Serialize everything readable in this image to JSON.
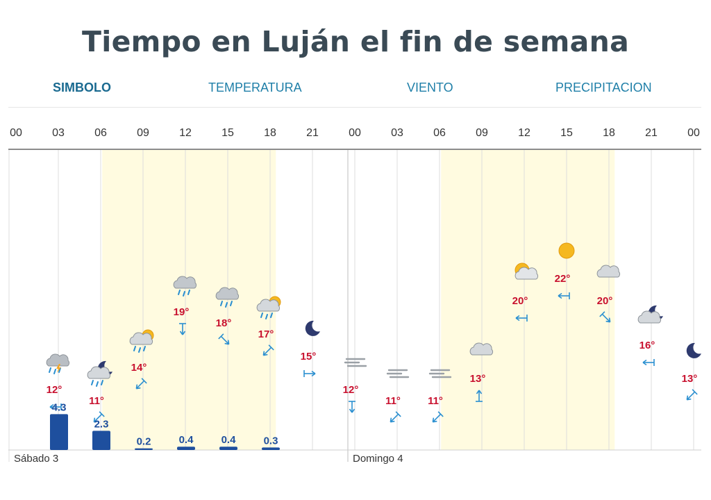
{
  "title": "Tiempo en Luján el fin de semana",
  "tabs": [
    {
      "label": "SIMBOLO",
      "active": true
    },
    {
      "label": "TEMPERATURA",
      "active": false
    },
    {
      "label": "VIENTO",
      "active": false
    },
    {
      "label": "PRECIPITACION",
      "active": false
    }
  ],
  "colors": {
    "temperature": "#c8102e",
    "precipitation": "#1e4f9e",
    "wind": "#2a8fd0",
    "daylight": "#fffbe0",
    "title": "#3a4a55"
  },
  "chart_data": {
    "type": "table",
    "days": [
      {
        "label": "Sábado 3",
        "start_index": 0
      },
      {
        "label": "Domingo 4",
        "start_index": 8
      }
    ],
    "hours": [
      "00",
      "03",
      "06",
      "09",
      "12",
      "15",
      "18",
      "21",
      "00",
      "03",
      "06",
      "09",
      "12",
      "15",
      "18",
      "21",
      "00"
    ],
    "daylight_ranges": [
      [
        2.2,
        6.3
      ],
      [
        10.2,
        14.3
      ]
    ],
    "forecast": [
      {
        "index": 1,
        "hour": "03",
        "icon": "storm-cloud-icon",
        "temp": 12,
        "temp_label": "12°",
        "wind_dir": "W",
        "precip": 4.3,
        "precip_label": "4.3"
      },
      {
        "index": 2,
        "hour": "06",
        "icon": "night-cloud-rain-icon",
        "temp": 11,
        "temp_label": "11°",
        "wind_dir": "SW",
        "precip": 2.3,
        "precip_label": "2.3"
      },
      {
        "index": 3,
        "hour": "09",
        "icon": "sun-cloud-rain-icon",
        "temp": 14,
        "temp_label": "14°",
        "wind_dir": "SW",
        "precip": 0.2,
        "precip_label": "0.2"
      },
      {
        "index": 4,
        "hour": "12",
        "icon": "rain-cloud-icon",
        "temp": 19,
        "temp_label": "19°",
        "wind_dir": "S",
        "precip": 0.4,
        "precip_label": "0.4"
      },
      {
        "index": 5,
        "hour": "15",
        "icon": "rain-cloud-icon",
        "temp": 18,
        "temp_label": "18°",
        "wind_dir": "SE",
        "precip": 0.4,
        "precip_label": "0.4"
      },
      {
        "index": 6,
        "hour": "18",
        "icon": "sun-cloud-rain-icon",
        "temp": 17,
        "temp_label": "17°",
        "wind_dir": "SW",
        "precip": 0.3,
        "precip_label": "0.3"
      },
      {
        "index": 7,
        "hour": "21",
        "icon": "moon-icon",
        "temp": 15,
        "temp_label": "15°",
        "wind_dir": "E"
      },
      {
        "index": 8,
        "hour": "00",
        "icon": "fog-icon",
        "temp": 12,
        "temp_label": "12°",
        "wind_dir": "S"
      },
      {
        "index": 9,
        "hour": "03",
        "icon": "fog-icon",
        "temp": 11,
        "temp_label": "11°",
        "wind_dir": "SW"
      },
      {
        "index": 10,
        "hour": "06",
        "icon": "fog-icon",
        "temp": 11,
        "temp_label": "11°",
        "wind_dir": "SW"
      },
      {
        "index": 11,
        "hour": "09",
        "icon": "cloud-icon",
        "temp": 13,
        "temp_label": "13°",
        "wind_dir": "N"
      },
      {
        "index": 12,
        "hour": "12",
        "icon": "sun-cloud-icon",
        "temp": 20,
        "temp_label": "20°",
        "wind_dir": "W"
      },
      {
        "index": 13,
        "hour": "15",
        "icon": "sun-icon",
        "temp": 22,
        "temp_label": "22°",
        "wind_dir": "W"
      },
      {
        "index": 14,
        "hour": "18",
        "icon": "cloud-icon",
        "temp": 20,
        "temp_label": "20°",
        "wind_dir": "SE"
      },
      {
        "index": 15,
        "hour": "21",
        "icon": "night-cloud-icon",
        "temp": 16,
        "temp_label": "16°",
        "wind_dir": "W"
      },
      {
        "index": 16,
        "hour": "00",
        "icon": "moon-icon",
        "temp": 13,
        "temp_label": "13°",
        "wind_dir": "SW"
      }
    ]
  }
}
